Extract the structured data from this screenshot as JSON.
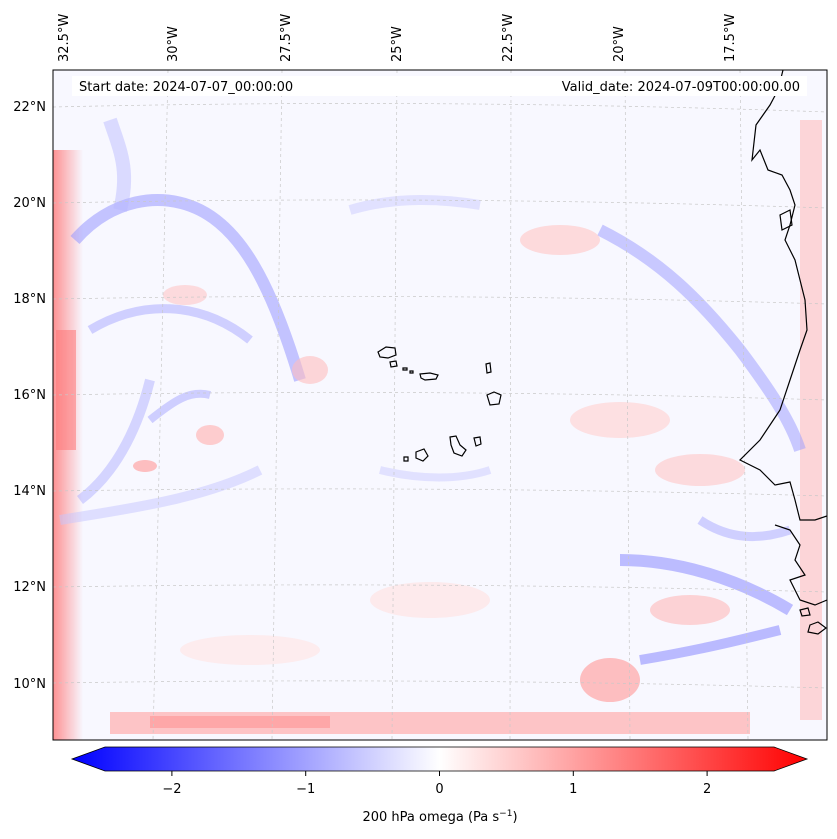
{
  "header": {
    "start_date": "Start date: 2024-07-07_00:00:00",
    "valid_date": "Valid_date: 2024-07-09T00:00:00.00"
  },
  "map": {
    "variable": "200 hPa omega",
    "lon_labels": [
      "32.5°W",
      "30°W",
      "27.5°W",
      "25°W",
      "22.5°W",
      "20°W",
      "17.5°W"
    ],
    "lat_labels": [
      "22°N",
      "20°N",
      "18°N",
      "16°N",
      "14°N",
      "12°N",
      "10°N"
    ],
    "features": [
      "Cape Verde islands",
      "West African coastline"
    ]
  },
  "colorbar": {
    "label": "200 hPa omega (Pa s",
    "label_sup": "−1",
    "label_end": ")",
    "ticks": [
      "−2",
      "−1",
      "0",
      "1",
      "2"
    ],
    "tick_values": [
      -2,
      -1,
      0,
      1,
      2
    ],
    "vmin": -2.5,
    "vmax": 2.5,
    "colors": {
      "min": "#0000ff",
      "mid": "#ffffff",
      "max": "#ff0000"
    }
  }
}
